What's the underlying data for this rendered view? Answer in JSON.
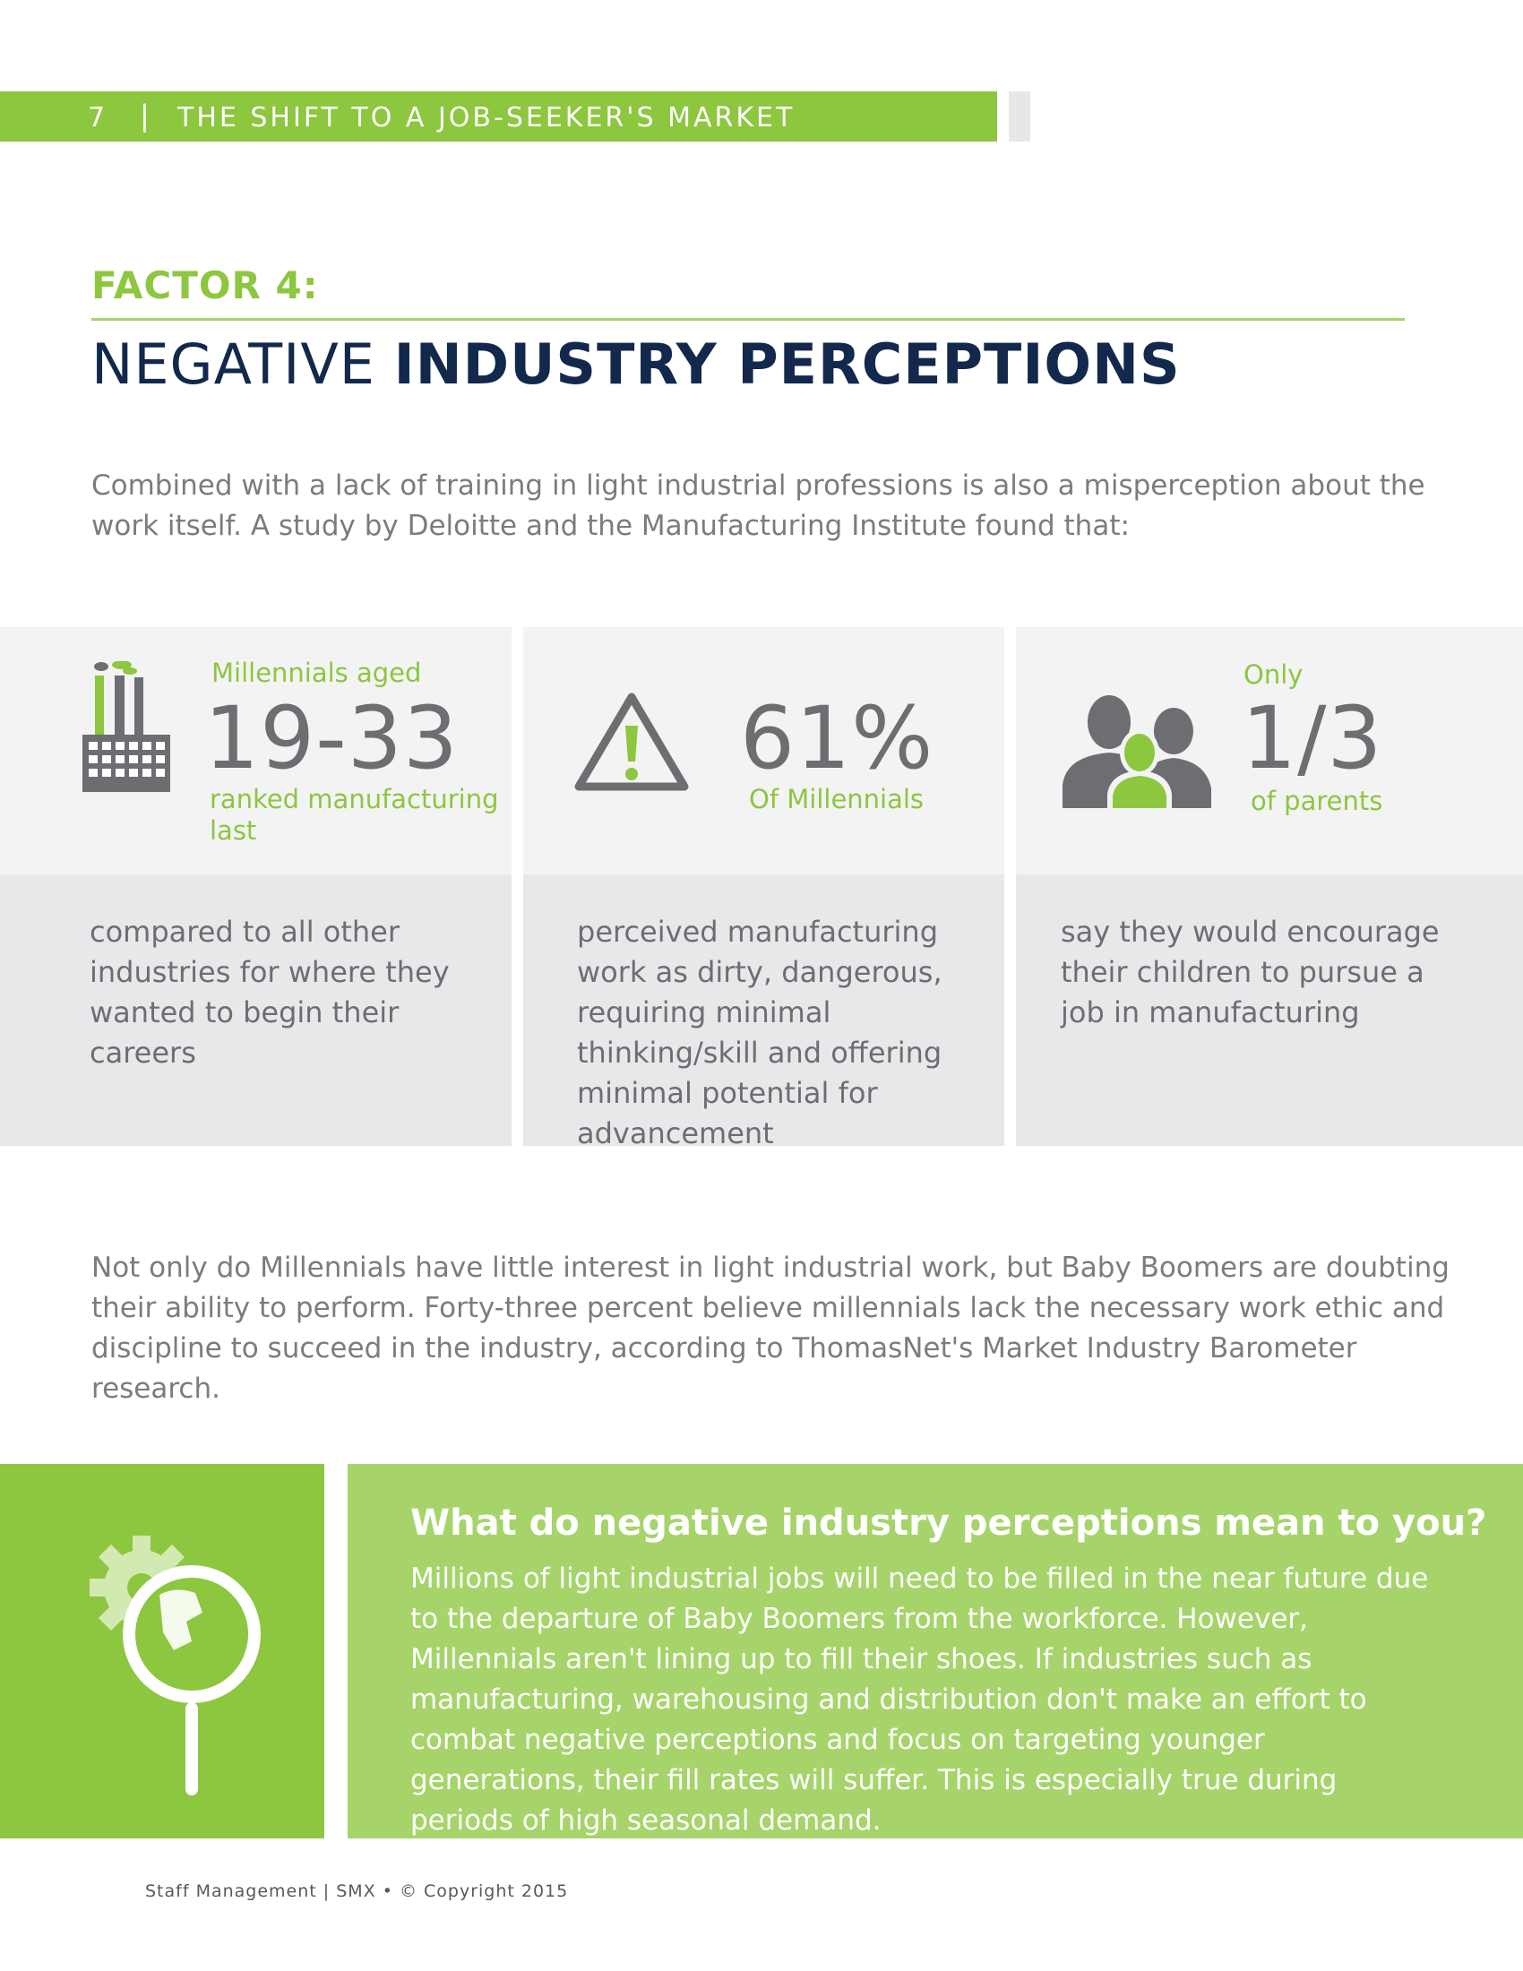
{
  "header": {
    "page_number": "7",
    "separator": "|",
    "title": "THE SHIFT TO A JOB-SEEKER'S MARKET"
  },
  "section": {
    "factor_label": "FACTOR 4:",
    "title_light": "NEGATIVE ",
    "title_bold": "INDUSTRY PERCEPTIONS"
  },
  "intro": "Combined with a lack of training in light industrial professions is also a misperception about the work itself. A study by Deloitte and the Manufacturing Institute found that:",
  "stats": [
    {
      "icon": "factory-icon",
      "pre": "Millennials aged",
      "value": "19-33",
      "post_line1": "ranked manufacturing",
      "post_line2": "last",
      "description": "compared to all other industries for where they wanted to begin their careers"
    },
    {
      "icon": "warning-icon",
      "value": "61%",
      "post_line1": "Of Millennials",
      "description": "perceived manufacturing work as dirty, dangerous, requiring minimal thinking/skill and offering minimal potential for advancement"
    },
    {
      "icon": "people-icon",
      "pre": "Only",
      "value": "1/3",
      "post_line1": "of parents",
      "description": "say they would encourage their children to pursue a job in manufacturing"
    }
  ],
  "paragraph2": "Not only do Millennials have little interest in light industrial work, but Baby Boomers are doubting their ability to perform. Forty-three percent believe millennials lack the necessary work ethic and discipline to succeed in the industry, according to ThomasNet's Market Industry Barometer research.",
  "callout": {
    "icon": "gear-magnifier-icon",
    "heading": "What do negative industry perceptions mean to you?",
    "body": "Millions of light industrial jobs will need to be filled in the near future due to the departure of Baby Boomers from the workforce. However, Millennials aren't lining up to fill their shoes. If industries such as manufacturing, warehousing and distribution don't make an effort to combat negative perceptions and focus on targeting younger generations, their fill rates will suffer. This is especially true during periods of high seasonal demand."
  },
  "footer": "Staff Management | SMX • © Copyright 2015",
  "colors": {
    "green": "#8dc63f",
    "light_green": "#a6d46a",
    "navy": "#12284c",
    "gray": "#6d6e71"
  }
}
